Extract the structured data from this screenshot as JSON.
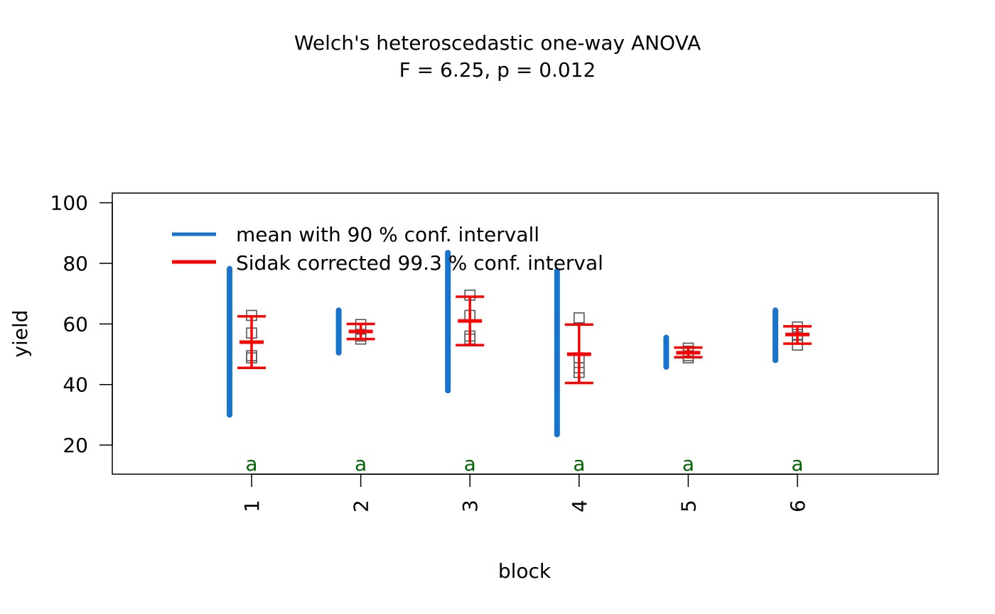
{
  "chart_data": {
    "type": "scatter",
    "title": "Welch's heteroscedastic one-way ANOVA",
    "subtitle": "F = 6.25, p = 0.012",
    "xlabel": "block",
    "ylabel": "yield",
    "ylim": [
      10.4,
      103.2
    ],
    "yticks": [
      20,
      40,
      60,
      80,
      100
    ],
    "categories": [
      "1",
      "2",
      "3",
      "4",
      "5",
      "6"
    ],
    "legend": {
      "placement": "top-left",
      "entries": [
        {
          "label": "mean with 90 % conf. intervall",
          "color": "#1874CD"
        },
        {
          "label": "Sidak corrected 99.3 % conf. interval",
          "color": "#FF0000"
        }
      ]
    },
    "points": [
      [
        62.8,
        57.0,
        49.5,
        48.8
      ],
      [
        59.8,
        58.5,
        56.0,
        55.0
      ],
      [
        69.5,
        62.8,
        56.0,
        55.0
      ],
      [
        62.0,
        48.8,
        45.5,
        44.0
      ],
      [
        52.0,
        51.0,
        49.5,
        48.8
      ],
      [
        59.0,
        56.5,
        55.0,
        53.0
      ]
    ],
    "mean_ci_90": [
      [
        30.0,
        78.2
      ],
      [
        50.5,
        64.5
      ],
      [
        38.0,
        83.5
      ],
      [
        23.5,
        77.5
      ],
      [
        45.8,
        55.5
      ],
      [
        48.0,
        64.5
      ]
    ],
    "means": [
      54.0,
      57.5,
      61.0,
      50.0,
      50.5,
      56.5
    ],
    "sidak_ci": [
      [
        45.5,
        62.5
      ],
      [
        55.0,
        60.0
      ],
      [
        53.0,
        69.0
      ],
      [
        40.5,
        59.8
      ],
      [
        49.0,
        52.2
      ],
      [
        53.5,
        59.2
      ]
    ],
    "group_letters": [
      "a",
      "a",
      "a",
      "a",
      "a",
      "a"
    ],
    "colors": {
      "ci90": "#1874CD",
      "sidak": "#FF0000",
      "letters": "#006400",
      "points": "#555555"
    }
  }
}
